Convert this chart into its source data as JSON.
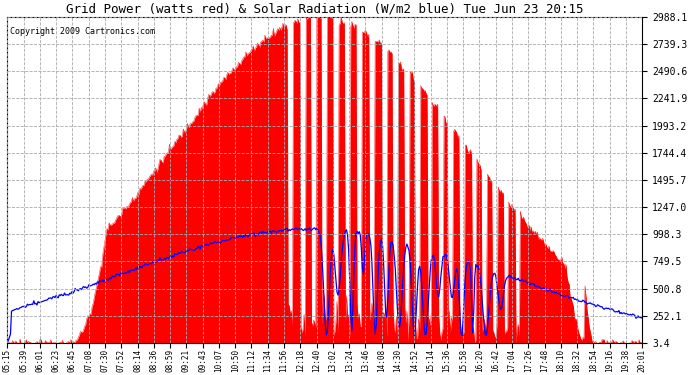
{
  "title": "Grid Power (watts red) & Solar Radiation (W/m2 blue) Tue Jun 23 20:15",
  "copyright": "Copyright 2009 Cartronics.com",
  "background_color": "#ffffff",
  "plot_bg_color": "#ffffff",
  "yticks": [
    3.4,
    252.1,
    500.8,
    749.5,
    998.3,
    1247.0,
    1495.7,
    1744.4,
    1993.2,
    2241.9,
    2490.6,
    2739.3,
    2988.1
  ],
  "ymin": 3.4,
  "ymax": 2988.1,
  "grid_color": "#aaaaaa",
  "grid_style": "--",
  "xtick_labels": [
    "05:15",
    "05:39",
    "06:01",
    "06:23",
    "06:45",
    "07:08",
    "07:30",
    "07:52",
    "08:14",
    "08:36",
    "08:59",
    "09:21",
    "09:43",
    "10:07",
    "10:50",
    "11:12",
    "11:34",
    "11:56",
    "12:18",
    "12:40",
    "13:02",
    "13:24",
    "13:46",
    "14:08",
    "14:30",
    "14:52",
    "15:14",
    "15:36",
    "15:58",
    "16:20",
    "16:42",
    "17:04",
    "17:26",
    "17:48",
    "18:10",
    "18:32",
    "18:54",
    "19:16",
    "19:38",
    "20:01"
  ],
  "red_fill_color": "#ff0000",
  "blue_line_color": "#0000ff",
  "title_fontsize": 9,
  "copyright_fontsize": 6,
  "tick_fontsize": 5.5,
  "ytick_fontsize": 7
}
